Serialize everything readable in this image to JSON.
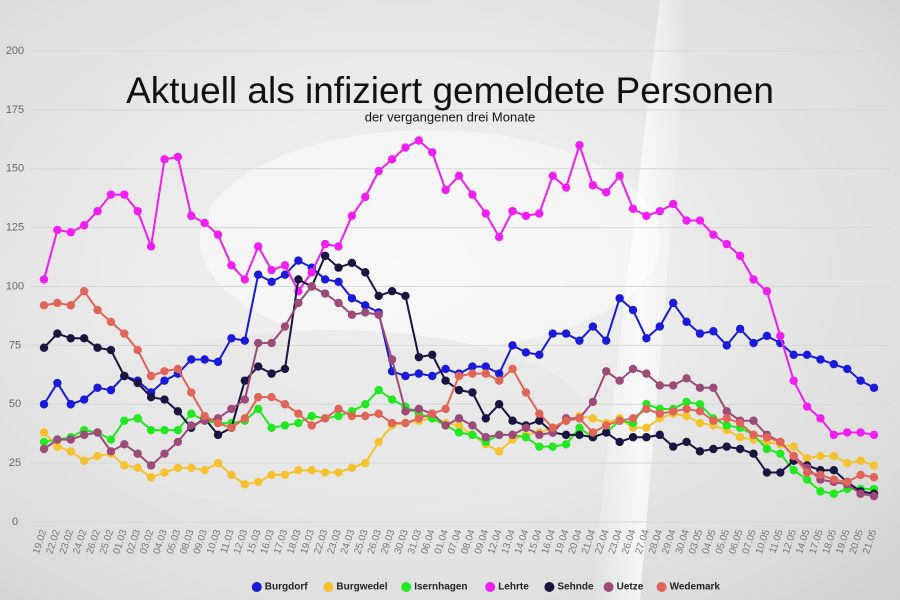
{
  "chart_data": {
    "type": "line",
    "title": "Aktuell als infiziert gemeldete Personen",
    "subtitle": "der vergangenen drei Monate",
    "categories": [
      "19.02",
      "22.02",
      "23.02",
      "24.02",
      "26.02",
      "25.02",
      "01.03",
      "02.03",
      "03.02",
      "04.03",
      "05.03",
      "08.03",
      "09.03",
      "10.03",
      "11.03",
      "12.03",
      "15.03",
      "16.03",
      "17.03",
      "18.03",
      "19.03",
      "22.03",
      "23.03",
      "24.03",
      "25.03",
      "26.03",
      "29.03",
      "30.03",
      "31.03",
      "06.04",
      "01.04",
      "07.04",
      "08.04",
      "09.04",
      "12.04",
      "13.04",
      "14.04",
      "15.04",
      "16.04",
      "19.04",
      "20.04",
      "21.04",
      "22.04",
      "23.04",
      "26.04",
      "27.04",
      "28.04",
      "29.04",
      "30.04",
      "03.05",
      "04.05",
      "05.05",
      "06.05",
      "07.05",
      "10.05",
      "11.05",
      "12.05",
      "14.05",
      "17.05",
      "18.05",
      "19.05",
      "20.05",
      "21.05"
    ],
    "ylim": [
      0,
      200
    ],
    "yticks": [
      0,
      25,
      50,
      75,
      100,
      125,
      150,
      175,
      200
    ],
    "series": [
      {
        "name": "Burgdorf",
        "color": "#1a1adb",
        "values": [
          50,
          59,
          50,
          52,
          57,
          56,
          62,
          60,
          55,
          60,
          63,
          69,
          69,
          68,
          78,
          77,
          105,
          102,
          105,
          111,
          108,
          103,
          102,
          95,
          92,
          89,
          64,
          62,
          63,
          62,
          65,
          63,
          66,
          66,
          63,
          75,
          72,
          71,
          80,
          80,
          77,
          83,
          77,
          95,
          90,
          78,
          83,
          93,
          85,
          80,
          81,
          75,
          82,
          76,
          79,
          76,
          71,
          71,
          69,
          67,
          65,
          60,
          57
        ]
      },
      {
        "name": "Burgwedel",
        "color": "#f5c230",
        "values": [
          38,
          32,
          30,
          26,
          28,
          29,
          24,
          23,
          19,
          21,
          23,
          23,
          22,
          25,
          20,
          16,
          17,
          20,
          20,
          22,
          22,
          21,
          21,
          23,
          25,
          34,
          41,
          42,
          43,
          44,
          42,
          41,
          37,
          33,
          30,
          35,
          37,
          38,
          40,
          43,
          45,
          44,
          42,
          44,
          40,
          40,
          44,
          46,
          45,
          42,
          41,
          39,
          36,
          35,
          34,
          33,
          32,
          27,
          28,
          28,
          25,
          26,
          24
        ]
      },
      {
        "name": "Isernhagen",
        "color": "#22e822",
        "values": [
          34,
          35,
          36,
          39,
          38,
          35,
          43,
          44,
          39,
          39,
          39,
          46,
          43,
          42,
          42,
          43,
          48,
          40,
          41,
          42,
          45,
          44,
          45,
          47,
          50,
          56,
          52,
          49,
          46,
          44,
          41,
          38,
          37,
          34,
          37,
          37,
          36,
          32,
          32,
          33,
          40,
          36,
          38,
          43,
          42,
          50,
          48,
          48,
          51,
          50,
          44,
          41,
          40,
          37,
          31,
          29,
          22,
          18,
          13,
          12,
          14,
          14,
          14
        ]
      },
      {
        "name": "Lehrte",
        "color": "#f01ef0",
        "values": [
          103,
          124,
          123,
          126,
          132,
          139,
          139,
          132,
          117,
          154,
          155,
          130,
          127,
          122,
          109,
          103,
          117,
          107,
          109,
          98,
          106,
          118,
          117,
          130,
          138,
          149,
          154,
          159,
          162,
          157,
          141,
          147,
          139,
          131,
          121,
          132,
          130,
          131,
          147,
          142,
          160,
          143,
          140,
          147,
          133,
          130,
          132,
          135,
          128,
          128,
          122,
          118,
          113,
          103,
          98,
          79,
          60,
          49,
          44,
          37,
          38,
          38,
          37
        ]
      },
      {
        "name": "Sehnde",
        "color": "#1a1440",
        "values": [
          74,
          80,
          78,
          78,
          74,
          73,
          62,
          59,
          53,
          52,
          47,
          40,
          44,
          37,
          40,
          60,
          66,
          63,
          65,
          103,
          100,
          113,
          108,
          110,
          106,
          96,
          98,
          96,
          70,
          71,
          60,
          56,
          55,
          44,
          50,
          43,
          41,
          43,
          38,
          37,
          37,
          36,
          38,
          34,
          36,
          36,
          37,
          32,
          34,
          30,
          31,
          32,
          31,
          29,
          21,
          21,
          26,
          24,
          22,
          22,
          17,
          13,
          12
        ]
      },
      {
        "name": "Uetze",
        "color": "#9c4a78",
        "values": [
          31,
          35,
          35,
          37,
          38,
          30,
          33,
          29,
          24,
          29,
          34,
          41,
          43,
          44,
          48,
          52,
          76,
          76,
          83,
          93,
          100,
          97,
          93,
          88,
          89,
          88,
          69,
          47,
          48,
          46,
          41,
          44,
          41,
          36,
          37,
          37,
          40,
          37,
          38,
          44,
          44,
          51,
          64,
          60,
          65,
          63,
          58,
          58,
          61,
          57,
          57,
          47,
          43,
          43,
          37,
          34,
          28,
          23,
          18,
          17,
          16,
          12,
          11
        ]
      },
      {
        "name": "Wedemark",
        "color": "#e06458",
        "values": [
          92,
          93,
          92,
          98,
          90,
          85,
          80,
          73,
          62,
          64,
          65,
          55,
          45,
          42,
          40,
          44,
          53,
          53,
          50,
          46,
          41,
          44,
          48,
          45,
          45,
          46,
          42,
          42,
          44,
          46,
          48,
          62,
          63,
          63,
          60,
          65,
          55,
          46,
          40,
          43,
          44,
          38,
          41,
          43,
          44,
          48,
          46,
          47,
          48,
          47,
          43,
          44,
          42,
          37,
          36,
          34,
          28,
          21,
          20,
          18,
          17,
          20,
          19
        ]
      }
    ],
    "grid": true
  }
}
